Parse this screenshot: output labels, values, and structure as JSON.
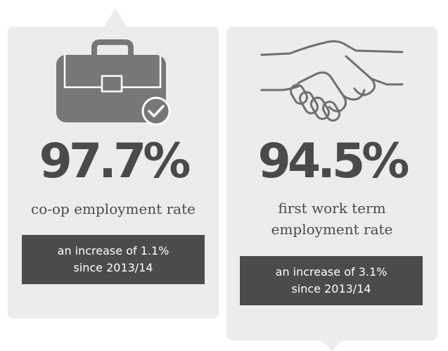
{
  "left_card": {
    "icon": "briefcase-check-icon",
    "stat": "97.7%",
    "label": "co-op employment rate",
    "increase_line1": "an increase of 1.1%",
    "increase_line2": "since 2013/14"
  },
  "right_card": {
    "icon": "handshake-icon",
    "stat": "94.5%",
    "label_line1": "first work term",
    "label_line2": "employment rate",
    "increase_line1": "an increase of 3.1%",
    "increase_line2": "since 2013/14"
  },
  "colors": {
    "card_background": "#ececec",
    "stat_text": "#4a4a4a",
    "pill_background": "#4b4b4b",
    "pill_text": "#ffffff",
    "icon_gray": "#777777"
  }
}
